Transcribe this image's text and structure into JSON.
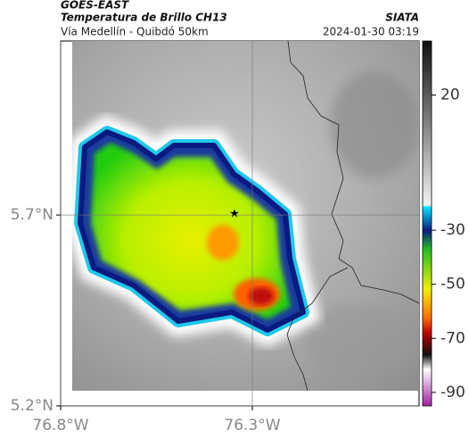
{
  "header": {
    "title": "GOES-EAST",
    "product": "Temperatura de Brillo CH13",
    "region": "Vía Medellín - Quibdó 50km",
    "source": "SIATA",
    "timestamp": "2024-01-30 03:19"
  },
  "map": {
    "xlim": [
      -76.8,
      -75.865
    ],
    "ylim": [
      5.2,
      6.156
    ],
    "xticks": [
      {
        "value": -76.8,
        "label": "76.8°W"
      },
      {
        "value": -76.3,
        "label": "76.3°W"
      }
    ],
    "yticks": [
      {
        "value": 5.2,
        "label": "5.2°N"
      },
      {
        "value": 5.7,
        "label": "5.7°N"
      }
    ]
  },
  "colorbar": {
    "lim": [
      -95,
      40
    ],
    "ticks": [
      20,
      -30,
      -50,
      -70,
      -90
    ]
  }
}
